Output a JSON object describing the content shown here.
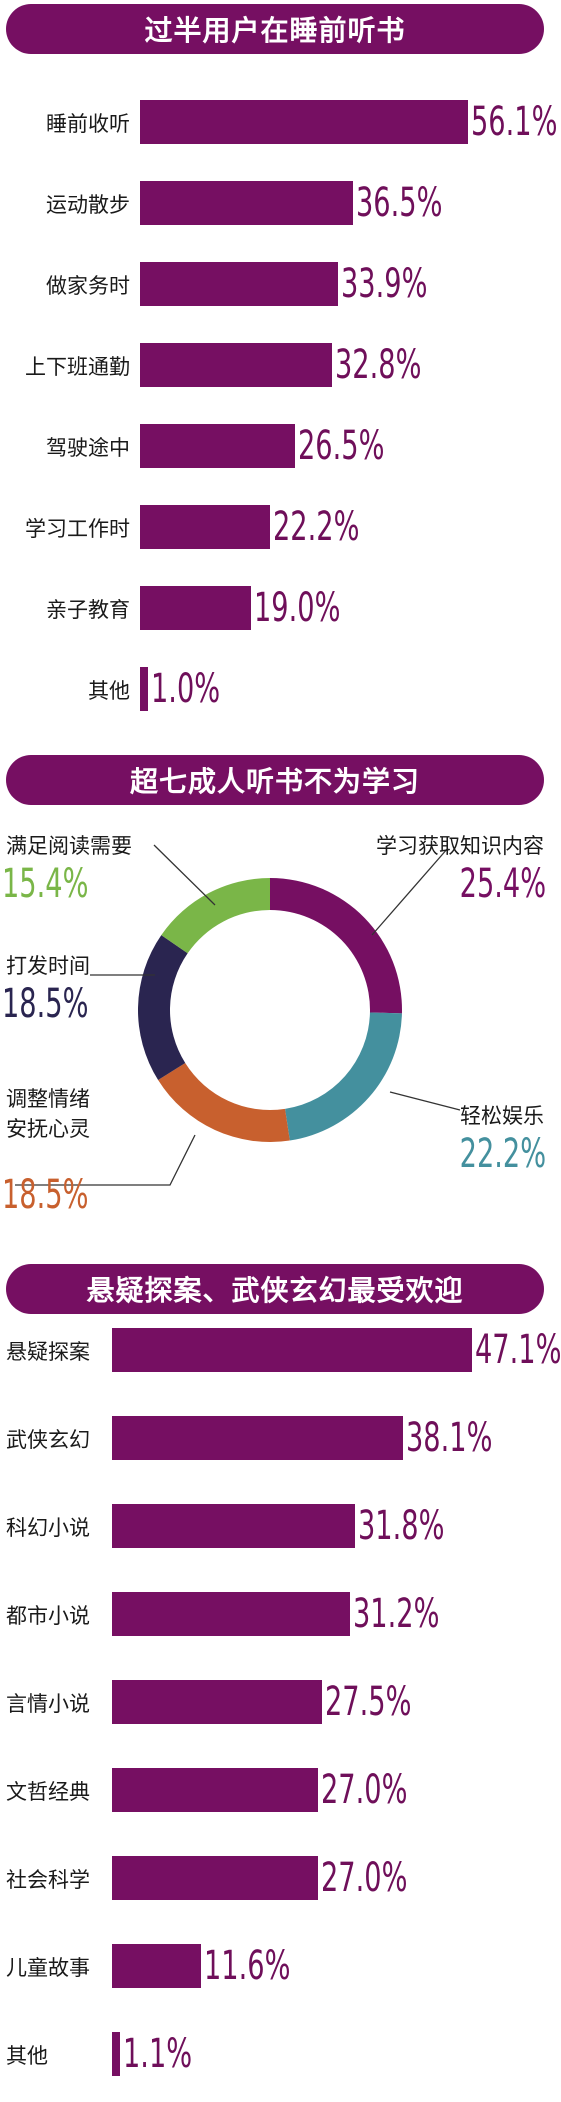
{
  "colors": {
    "accent": "#760f62",
    "value_text": "#6f0f5a",
    "green": "#7ab648",
    "navy": "#2a2550",
    "orange": "#c8602e",
    "teal": "#44909e"
  },
  "chart_data": [
    {
      "type": "bar",
      "title": "过半用户在睡前听书",
      "categories": [
        "睡前收听",
        "运动散步",
        "做家务时",
        "上下班通勤",
        "驾驶途中",
        "学习工作时",
        "亲子教育",
        "其他"
      ],
      "values": [
        56.1,
        36.5,
        33.9,
        32.8,
        26.5,
        22.2,
        19.0,
        1.0
      ],
      "value_labels": [
        "56.1%",
        "36.5%",
        "33.9%",
        "32.8%",
        "26.5%",
        "22.2%",
        "19.0%",
        "1.0%"
      ],
      "xlim": [
        0,
        56.1
      ]
    },
    {
      "type": "pie",
      "title": "超七成人听书不为学习",
      "slices": [
        {
          "label": "学习获取知识内容",
          "value": 25.4,
          "value_label": "25.4%",
          "color": "#760f62"
        },
        {
          "label": "轻松娱乐",
          "value": 22.2,
          "value_label": "22.2%",
          "color": "#44909e"
        },
        {
          "label": "调整情绪\n安抚心灵",
          "value": 18.5,
          "value_label": "18.5%",
          "color": "#c8602e"
        },
        {
          "label": "打发时间",
          "value": 18.5,
          "value_label": "18.5%",
          "color": "#2a2550"
        },
        {
          "label": "满足阅读需要",
          "value": 15.4,
          "value_label": "15.4%",
          "color": "#7ab648"
        }
      ]
    },
    {
      "type": "bar",
      "title": "悬疑探案、武侠玄幻最受欢迎",
      "categories": [
        "悬疑探案",
        "武侠玄幻",
        "科幻小说",
        "都市小说",
        "言情小说",
        "文哲经典",
        "社会科学",
        "儿童故事",
        "其他"
      ],
      "values": [
        47.1,
        38.1,
        31.8,
        31.2,
        27.5,
        27.0,
        27.0,
        11.6,
        1.1
      ],
      "value_labels": [
        "47.1%",
        "38.1%",
        "31.8%",
        "31.2%",
        "27.5%",
        "27.0%",
        "27.0%",
        "11.6%",
        "1.1%"
      ],
      "xlim": [
        0,
        47.1
      ]
    }
  ]
}
